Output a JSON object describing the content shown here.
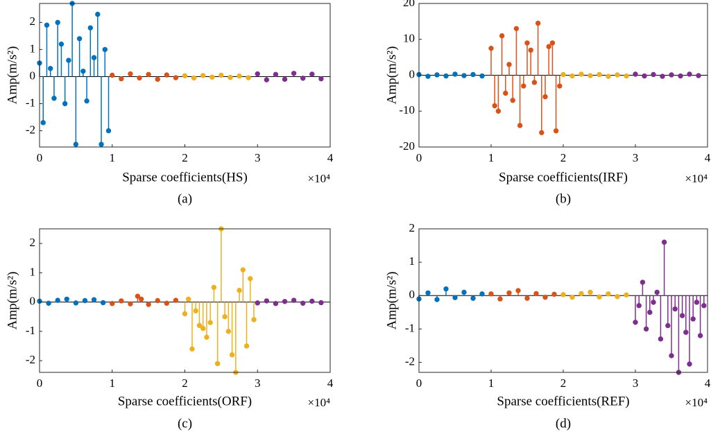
{
  "chart_data": [
    {
      "type": "stem",
      "xlabel": "Sparse coefficients(HS)",
      "ylabel": "Amp(m/s²)",
      "x_multiplier": "×10⁴",
      "caption": "(a)",
      "xlim": [
        0,
        40000
      ],
      "xticks": [
        0,
        {
          "value": 10000,
          "label": "1"
        },
        {
          "value": 20000,
          "label": "2"
        },
        {
          "value": 30000,
          "label": "3"
        },
        {
          "value": 40000,
          "label": "4"
        }
      ],
      "ylim": [
        -2.6,
        2.7
      ],
      "yticks": [
        -2,
        -1,
        0,
        1,
        2
      ],
      "series": [
        {
          "color": "#0072BD",
          "x": [
            0,
            500,
            1000,
            1500,
            2000,
            2500,
            3000,
            3500,
            4000,
            4500,
            5000,
            5500,
            6000,
            6500,
            7000,
            7500,
            8000,
            8500,
            9000,
            9500
          ],
          "values": [
            0.5,
            -1.7,
            1.9,
            0.3,
            -0.8,
            2.0,
            1.2,
            -1.0,
            0.6,
            2.7,
            -2.5,
            1.4,
            0.2,
            -0.9,
            1.8,
            0.7,
            2.3,
            -2.5,
            1.0,
            -2.0
          ]
        },
        {
          "color": "#D95319",
          "x": [
            10000,
            11250,
            12500,
            13750,
            15000,
            16250,
            17500,
            18750
          ],
          "values": [
            0.05,
            -0.08,
            0.1,
            -0.05,
            0.08,
            -0.1,
            0.06,
            -0.04
          ]
        },
        {
          "color": "#EDB120",
          "x": [
            20000,
            21250,
            22500,
            23750,
            25000,
            26250,
            27500,
            28750
          ],
          "values": [
            0.03,
            -0.05,
            0.04,
            -0.02,
            0.05,
            -0.03,
            0.02,
            -0.04
          ]
        },
        {
          "color": "#7E2F8E",
          "x": [
            30000,
            31250,
            32500,
            33750,
            35000,
            36250,
            37500,
            38750
          ],
          "values": [
            0.1,
            -0.12,
            0.08,
            -0.1,
            0.12,
            -0.06,
            0.09,
            -0.08
          ]
        }
      ]
    },
    {
      "type": "stem",
      "xlabel": "Sparse coefficients(IRF)",
      "ylabel": "Amp(m/s²)",
      "x_multiplier": "×10⁴",
      "caption": "(b)",
      "xlim": [
        0,
        40000
      ],
      "xticks": [
        0,
        {
          "value": 10000,
          "label": "1"
        },
        {
          "value": 20000,
          "label": "2"
        },
        {
          "value": 30000,
          "label": "3"
        },
        {
          "value": 40000,
          "label": "4"
        }
      ],
      "ylim": [
        -20,
        20
      ],
      "yticks": [
        -20,
        -10,
        0,
        10,
        20
      ],
      "series": [
        {
          "color": "#0072BD",
          "x": [
            0,
            1250,
            2500,
            3750,
            5000,
            6250,
            7500,
            8750
          ],
          "values": [
            0.2,
            -0.3,
            0.1,
            -0.2,
            0.3,
            -0.1,
            0.2,
            -0.2
          ]
        },
        {
          "color": "#D95319",
          "x": [
            10000,
            10500,
            11000,
            11500,
            12000,
            12500,
            13000,
            13500,
            14000,
            14500,
            15000,
            15500,
            16000,
            16500,
            17000,
            17500,
            18000,
            18500,
            19000,
            19500
          ],
          "values": [
            7.5,
            -8.5,
            -10,
            11,
            -5,
            3,
            -7,
            13,
            -14,
            -3,
            9,
            7,
            -2,
            14.5,
            -16,
            -6,
            8,
            9,
            -15.5,
            -3
          ]
        },
        {
          "color": "#EDB120",
          "x": [
            20000,
            21250,
            22500,
            23750,
            25000,
            26250,
            27500,
            28750
          ],
          "values": [
            0.2,
            -0.2,
            0.3,
            -0.1,
            0.2,
            -0.3,
            0.1,
            -0.2
          ]
        },
        {
          "color": "#7E2F8E",
          "x": [
            30000,
            31250,
            32500,
            33750,
            35000,
            36250,
            37500,
            38750
          ],
          "values": [
            0.3,
            -0.2,
            0.2,
            -0.3,
            0.1,
            -0.2,
            0.3,
            -0.1
          ]
        }
      ]
    },
    {
      "type": "stem",
      "xlabel": "Sparse coefficients(ORF)",
      "ylabel": "Amp(m/s²)",
      "x_multiplier": "×10⁴",
      "caption": "(c)",
      "xlim": [
        0,
        40000
      ],
      "xticks": [
        0,
        {
          "value": 10000,
          "label": "1"
        },
        {
          "value": 20000,
          "label": "2"
        },
        {
          "value": 30000,
          "label": "3"
        },
        {
          "value": 40000,
          "label": "4"
        }
      ],
      "ylim": [
        -2.4,
        2.5
      ],
      "yticks": [
        -2,
        -1,
        0,
        1,
        2
      ],
      "series": [
        {
          "color": "#0072BD",
          "x": [
            0,
            1250,
            2500,
            3750,
            5000,
            6250,
            7500,
            8750
          ],
          "values": [
            0.03,
            -0.04,
            0.06,
            0.1,
            -0.03,
            0.05,
            0.08,
            -0.02
          ]
        },
        {
          "color": "#D95319",
          "x": [
            10000,
            11250,
            12500,
            13500,
            14000,
            15000,
            16250,
            17500,
            18750
          ],
          "values": [
            -0.05,
            0.04,
            -0.06,
            0.2,
            0.1,
            -0.08,
            0.05,
            -0.04,
            0.06
          ]
        },
        {
          "color": "#EDB120",
          "x": [
            20000,
            20500,
            21000,
            21500,
            22000,
            22500,
            23000,
            23500,
            24000,
            24500,
            25000,
            25500,
            26000,
            26500,
            27000,
            27500,
            28000,
            28500,
            29000,
            29500
          ],
          "values": [
            -0.4,
            0.1,
            -1.6,
            -0.3,
            -0.8,
            -0.9,
            -1.2,
            -0.7,
            0.5,
            -2.1,
            2.5,
            -0.5,
            -1.0,
            -1.8,
            -2.4,
            0.4,
            1.1,
            -1.5,
            0.8,
            -0.6
          ]
        },
        {
          "color": "#7E2F8E",
          "x": [
            30000,
            31250,
            32500,
            33750,
            35000,
            36250,
            37500,
            38750
          ],
          "values": [
            -0.03,
            0.04,
            -0.05,
            0.02,
            0.06,
            -0.04,
            0.03,
            -0.02
          ]
        }
      ]
    },
    {
      "type": "stem",
      "xlabel": "Sparse coefficients(REF)",
      "ylabel": "Amp(m/s²)",
      "x_multiplier": "×10⁴",
      "caption": "(d)",
      "xlim": [
        0,
        40000
      ],
      "xticks": [
        0,
        {
          "value": 10000,
          "label": "1"
        },
        {
          "value": 20000,
          "label": "2"
        },
        {
          "value": 30000,
          "label": "3"
        },
        {
          "value": 40000,
          "label": "4"
        }
      ],
      "ylim": [
        -2.3,
        2
      ],
      "yticks": [
        -2,
        -1,
        0,
        1,
        2
      ],
      "series": [
        {
          "color": "#0072BD",
          "x": [
            0,
            1250,
            2500,
            3750,
            5000,
            6250,
            7500,
            8750
          ],
          "values": [
            -0.1,
            0.08,
            -0.12,
            0.2,
            -0.06,
            0.1,
            -0.08,
            0.05
          ]
        },
        {
          "color": "#D95319",
          "x": [
            10000,
            11250,
            12500,
            13750,
            15000,
            16250,
            17500,
            18750
          ],
          "values": [
            0.05,
            -0.1,
            0.08,
            0.15,
            -0.08,
            0.06,
            -0.05,
            0.04
          ]
        },
        {
          "color": "#EDB120",
          "x": [
            20000,
            21250,
            22500,
            23750,
            25000,
            26250,
            27500,
            28750
          ],
          "values": [
            0.03,
            -0.05,
            0.06,
            0.1,
            -0.04,
            0.05,
            -0.03,
            0.02
          ]
        },
        {
          "color": "#7E2F8E",
          "x": [
            30000,
            30500,
            31000,
            31500,
            32000,
            32500,
            33000,
            33500,
            34000,
            34500,
            35000,
            35500,
            36000,
            36500,
            37000,
            37500,
            38000,
            38500,
            39000,
            39500
          ],
          "values": [
            -0.8,
            -0.3,
            0.4,
            -1.0,
            -0.5,
            -0.2,
            0.1,
            -1.3,
            1.6,
            -0.9,
            -1.8,
            -0.4,
            -2.3,
            -0.6,
            -1.1,
            -2.05,
            -0.7,
            -0.2,
            -1.2,
            -0.3
          ]
        }
      ]
    }
  ]
}
